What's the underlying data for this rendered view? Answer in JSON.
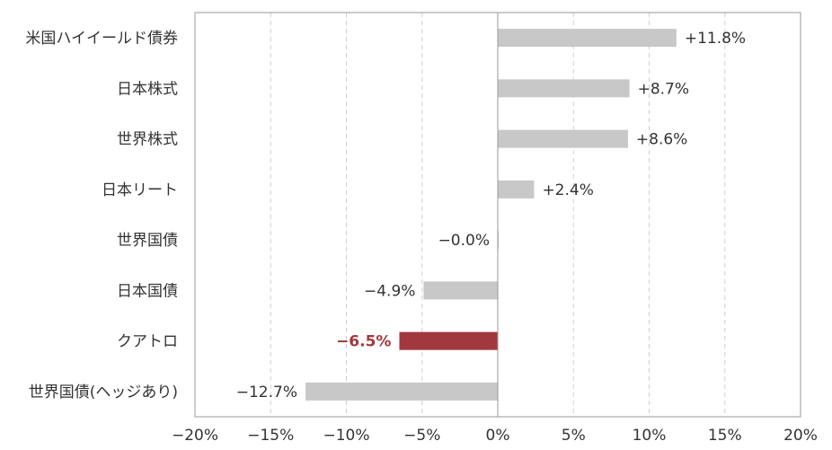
{
  "chart_data": {
    "type": "bar",
    "orientation": "horizontal",
    "title": "",
    "xlabel": "",
    "ylabel": "",
    "xlim": [
      -20,
      20
    ],
    "x_ticks": [
      -20,
      -15,
      -10,
      -5,
      0,
      5,
      10,
      15,
      20
    ],
    "x_tick_labels": [
      "−20%",
      "−15%",
      "−10%",
      "−5%",
      "0%",
      "5%",
      "10%",
      "15%",
      "20%"
    ],
    "grid": "vertical dashed",
    "legend": "none",
    "categories": [
      "米国ハイイールド債券",
      "日本株式",
      "世界株式",
      "日本リート",
      "世界国債",
      "日本国債",
      "クアトロ",
      "世界国債(ヘッジあり)"
    ],
    "values": [
      11.8,
      8.7,
      8.6,
      2.4,
      -0.0,
      -4.9,
      -6.5,
      -12.7
    ],
    "value_labels": [
      "+11.8%",
      "+8.7%",
      "+8.6%",
      "+2.4%",
      "−0.0%",
      "−4.9%",
      "−6.5%",
      "−12.7%"
    ],
    "highlight_index": 6,
    "colors": {
      "bar": "#c8c8c8",
      "highlight": "#a0383e",
      "highlight_label": "#a0383e",
      "grid": "#d0d0d0",
      "axis": "#999999",
      "text": "#333333"
    }
  }
}
